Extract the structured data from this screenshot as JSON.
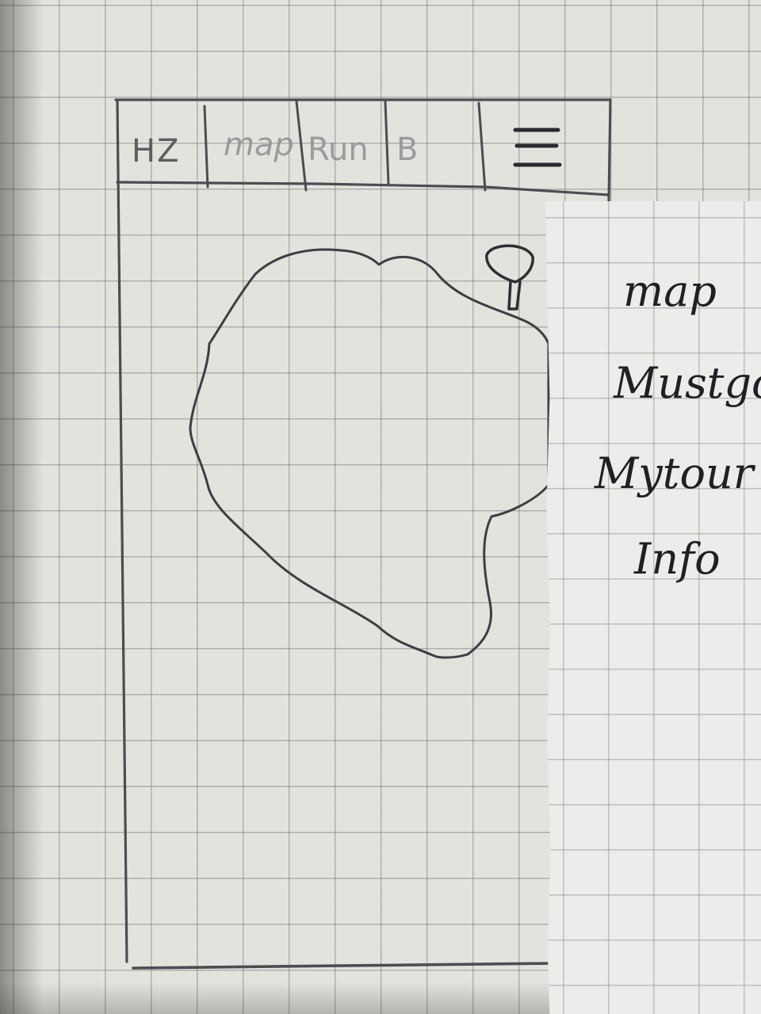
{
  "navbar": {
    "tabs": [
      {
        "label": "HZ"
      },
      {
        "label": "map"
      },
      {
        "label": "Run"
      },
      {
        "label": "B"
      }
    ],
    "menu_icon": "hamburger-menu-icon"
  },
  "map": {
    "region_shape": "island-outline",
    "marker_icon": "map-pin-icon"
  },
  "drawer": {
    "items": [
      {
        "label": "map"
      },
      {
        "label": "Mustgo"
      },
      {
        "label": "Mytour"
      },
      {
        "label": "Info"
      }
    ]
  },
  "colors": {
    "paper": "#e3e3de",
    "grid": "#6e6e73",
    "pencil": "#4a4a50",
    "ink": "#1f1f24"
  }
}
